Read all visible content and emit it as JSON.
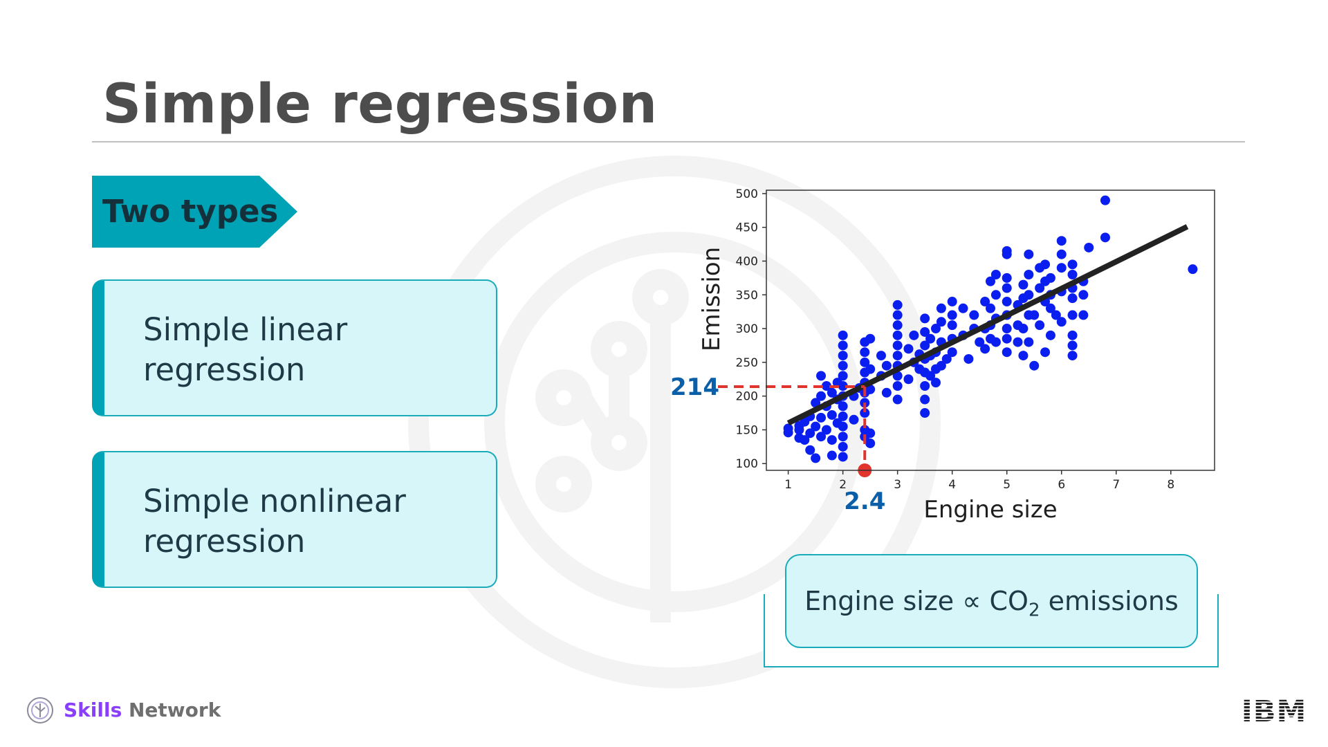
{
  "slide": {
    "title": "Simple regression",
    "tag_label": "Two types",
    "cards": [
      {
        "line1": "Simple linear",
        "line2": "regression"
      },
      {
        "line1": "Simple nonlinear",
        "line2": "regression"
      }
    ],
    "equation": {
      "left": "Engine size ∝ CO",
      "sub": "2",
      "right": " emissions"
    },
    "footer": {
      "brand_strong": "Skills",
      "brand_rest": " Network",
      "company": "IBM"
    },
    "colors": {
      "accent": "#00a3b6",
      "card_fill": "#d6f6fa",
      "points": "#0a1ef0",
      "fit_line": "#222222",
      "guide": "#e0342c",
      "annotation": "#0b5ea8"
    }
  },
  "chart_data": {
    "type": "scatter",
    "xlabel": "Engine size",
    "ylabel": "Emission",
    "xlim": [
      0.6,
      8.8
    ],
    "ylim": [
      90,
      505
    ],
    "xticks": [
      1,
      2,
      3,
      4,
      5,
      6,
      7,
      8
    ],
    "yticks": [
      100,
      150,
      200,
      250,
      300,
      350,
      400,
      450,
      500
    ],
    "points": [
      [
        1.0,
        146
      ],
      [
        1.0,
        152
      ],
      [
        1.2,
        138
      ],
      [
        1.2,
        150
      ],
      [
        1.2,
        156
      ],
      [
        1.3,
        135
      ],
      [
        1.3,
        162
      ],
      [
        1.4,
        120
      ],
      [
        1.4,
        145
      ],
      [
        1.4,
        170
      ],
      [
        1.5,
        108
      ],
      [
        1.5,
        155
      ],
      [
        1.5,
        190
      ],
      [
        1.6,
        140
      ],
      [
        1.6,
        168
      ],
      [
        1.6,
        200
      ],
      [
        1.6,
        230
      ],
      [
        1.7,
        150
      ],
      [
        1.7,
        185
      ],
      [
        1.7,
        215
      ],
      [
        1.8,
        112
      ],
      [
        1.8,
        135
      ],
      [
        1.8,
        172
      ],
      [
        1.8,
        205
      ],
      [
        1.9,
        160
      ],
      [
        1.9,
        195
      ],
      [
        1.9,
        220
      ],
      [
        2.0,
        110
      ],
      [
        2.0,
        125
      ],
      [
        2.0,
        140
      ],
      [
        2.0,
        155
      ],
      [
        2.0,
        170
      ],
      [
        2.0,
        185
      ],
      [
        2.0,
        200
      ],
      [
        2.0,
        215
      ],
      [
        2.0,
        230
      ],
      [
        2.0,
        245
      ],
      [
        2.0,
        260
      ],
      [
        2.0,
        275
      ],
      [
        2.0,
        290
      ],
      [
        2.2,
        165
      ],
      [
        2.2,
        200
      ],
      [
        2.3,
        212
      ],
      [
        2.4,
        140
      ],
      [
        2.4,
        150
      ],
      [
        2.4,
        175
      ],
      [
        2.4,
        190
      ],
      [
        2.4,
        205
      ],
      [
        2.4,
        220
      ],
      [
        2.4,
        235
      ],
      [
        2.4,
        250
      ],
      [
        2.4,
        265
      ],
      [
        2.4,
        280
      ],
      [
        2.5,
        130
      ],
      [
        2.5,
        145
      ],
      [
        2.5,
        210
      ],
      [
        2.5,
        240
      ],
      [
        2.5,
        285
      ],
      [
        2.7,
        230
      ],
      [
        2.7,
        260
      ],
      [
        2.8,
        205
      ],
      [
        2.8,
        245
      ],
      [
        3.0,
        195
      ],
      [
        3.0,
        215
      ],
      [
        3.0,
        230
      ],
      [
        3.0,
        245
      ],
      [
        3.0,
        260
      ],
      [
        3.0,
        275
      ],
      [
        3.0,
        290
      ],
      [
        3.0,
        305
      ],
      [
        3.0,
        320
      ],
      [
        3.0,
        335
      ],
      [
        3.2,
        225
      ],
      [
        3.2,
        270
      ],
      [
        3.3,
        250
      ],
      [
        3.3,
        290
      ],
      [
        3.4,
        240
      ],
      [
        3.4,
        262
      ],
      [
        3.5,
        175
      ],
      [
        3.5,
        195
      ],
      [
        3.5,
        215
      ],
      [
        3.5,
        235
      ],
      [
        3.5,
        255
      ],
      [
        3.5,
        275
      ],
      [
        3.5,
        295
      ],
      [
        3.5,
        315
      ],
      [
        3.6,
        230
      ],
      [
        3.6,
        260
      ],
      [
        3.6,
        285
      ],
      [
        3.7,
        220
      ],
      [
        3.7,
        240
      ],
      [
        3.7,
        265
      ],
      [
        3.7,
        300
      ],
      [
        3.8,
        245
      ],
      [
        3.8,
        280
      ],
      [
        3.8,
        310
      ],
      [
        3.8,
        330
      ],
      [
        3.9,
        255
      ],
      [
        4.0,
        265
      ],
      [
        4.0,
        285
      ],
      [
        4.0,
        305
      ],
      [
        4.0,
        320
      ],
      [
        4.0,
        340
      ],
      [
        4.2,
        290
      ],
      [
        4.2,
        330
      ],
      [
        4.3,
        255
      ],
      [
        4.4,
        300
      ],
      [
        4.4,
        320
      ],
      [
        4.5,
        280
      ],
      [
        4.6,
        270
      ],
      [
        4.6,
        300
      ],
      [
        4.6,
        340
      ],
      [
        4.7,
        285
      ],
      [
        4.7,
        305
      ],
      [
        4.7,
        330
      ],
      [
        4.7,
        370
      ],
      [
        4.8,
        280
      ],
      [
        4.8,
        315
      ],
      [
        4.8,
        350
      ],
      [
        4.8,
        380
      ],
      [
        5.0,
        265
      ],
      [
        5.0,
        285
      ],
      [
        5.0,
        300
      ],
      [
        5.0,
        320
      ],
      [
        5.0,
        340
      ],
      [
        5.0,
        360
      ],
      [
        5.0,
        375
      ],
      [
        5.0,
        410
      ],
      [
        5.0,
        415
      ],
      [
        5.2,
        280
      ],
      [
        5.2,
        305
      ],
      [
        5.2,
        335
      ],
      [
        5.3,
        260
      ],
      [
        5.3,
        300
      ],
      [
        5.3,
        345
      ],
      [
        5.3,
        365
      ],
      [
        5.4,
        280
      ],
      [
        5.4,
        320
      ],
      [
        5.4,
        350
      ],
      [
        5.4,
        380
      ],
      [
        5.4,
        410
      ],
      [
        5.5,
        245
      ],
      [
        5.5,
        320
      ],
      [
        5.6,
        305
      ],
      [
        5.6,
        360
      ],
      [
        5.6,
        390
      ],
      [
        5.7,
        265
      ],
      [
        5.7,
        340
      ],
      [
        5.7,
        370
      ],
      [
        5.7,
        395
      ],
      [
        5.8,
        290
      ],
      [
        5.8,
        330
      ],
      [
        5.8,
        350
      ],
      [
        5.8,
        375
      ],
      [
        5.9,
        320
      ],
      [
        6.0,
        310
      ],
      [
        6.0,
        355
      ],
      [
        6.0,
        390
      ],
      [
        6.0,
        410
      ],
      [
        6.0,
        430
      ],
      [
        6.2,
        260
      ],
      [
        6.2,
        275
      ],
      [
        6.2,
        290
      ],
      [
        6.2,
        320
      ],
      [
        6.2,
        345
      ],
      [
        6.2,
        360
      ],
      [
        6.2,
        380
      ],
      [
        6.2,
        395
      ],
      [
        6.4,
        320
      ],
      [
        6.4,
        350
      ],
      [
        6.4,
        370
      ],
      [
        6.5,
        420
      ],
      [
        6.8,
        435
      ],
      [
        6.8,
        490
      ],
      [
        8.4,
        388
      ]
    ],
    "fit_line": [
      [
        1.0,
        160
      ],
      [
        8.3,
        451
      ]
    ],
    "annotation": {
      "x": 2.4,
      "y": 214,
      "x_label": "2.4",
      "y_label": "214"
    }
  }
}
